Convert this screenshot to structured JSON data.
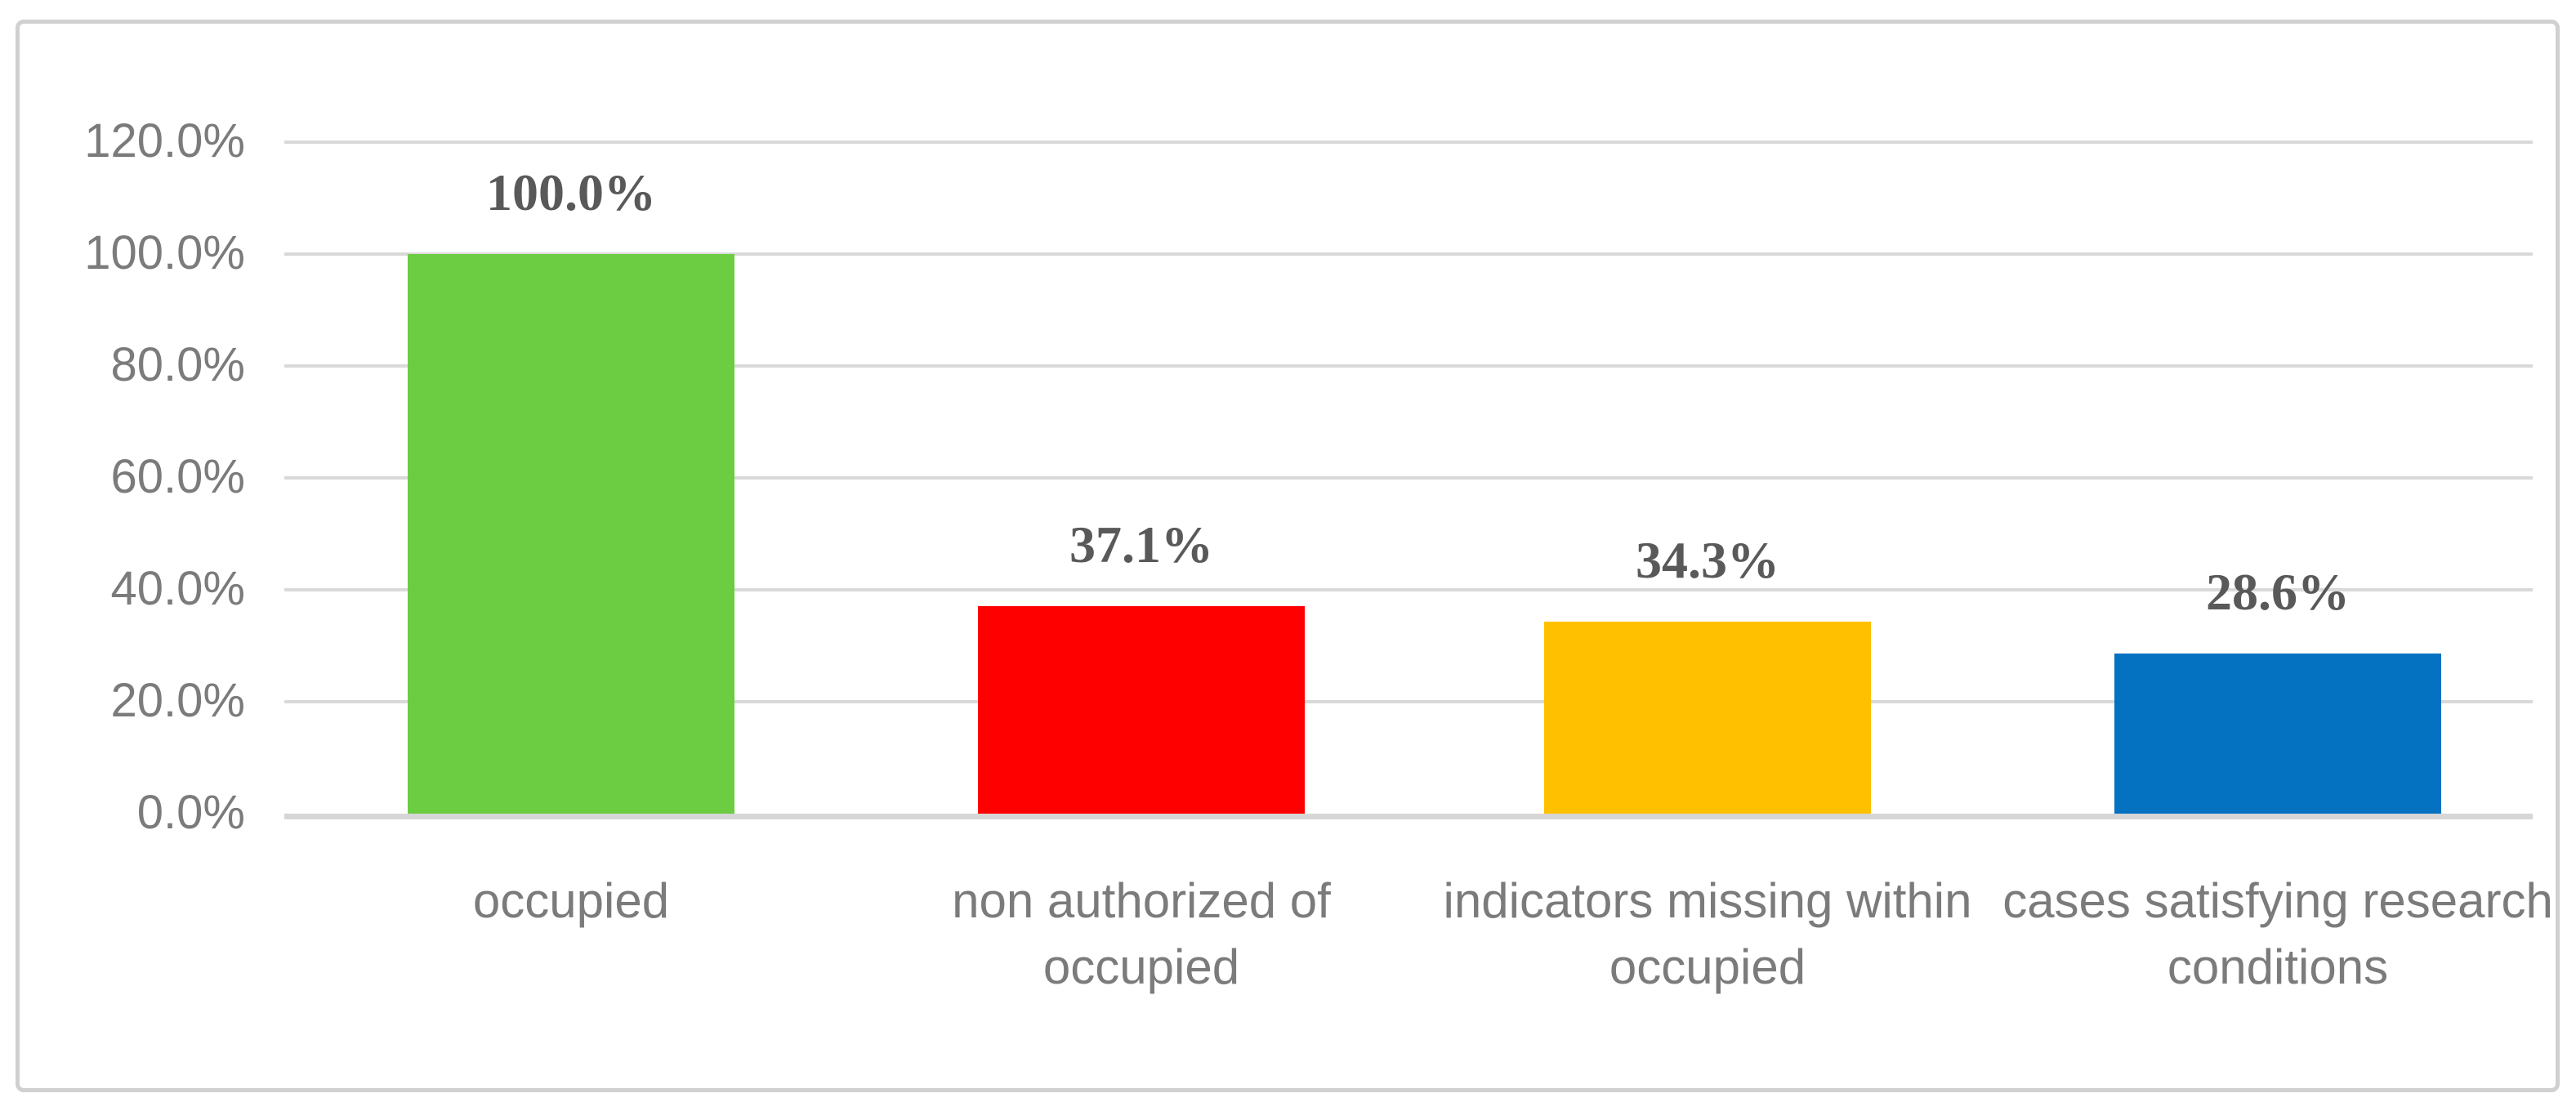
{
  "chart_data": {
    "type": "bar",
    "title": "",
    "xlabel": "",
    "ylabel": "",
    "categories": [
      "occupied",
      "non authorized of occupied",
      "indicators missing within occupied",
      "cases satisfying research conditions"
    ],
    "values": [
      100.0,
      37.1,
      34.3,
      28.6
    ],
    "value_labels": [
      "100.0%",
      "37.1%",
      "34.3%",
      "28.6%"
    ],
    "bar_colors": [
      "#6CCC42",
      "#FF0000",
      "#FFC000",
      "#0471C1"
    ],
    "ylim": [
      0,
      120
    ],
    "ytick_step": 20,
    "ytick_labels_desc": [
      "120.0%",
      "100.0%",
      "80.0%",
      "60.0%",
      "40.0%",
      "20.0%",
      "0.0%"
    ],
    "grid": "horizontal",
    "legend": "none",
    "colors": {
      "gridline": "#D9D9D9",
      "axis_line": "#D6D6D6",
      "axis_text": "#7B7B7B",
      "data_label_text": "#595959",
      "frame_border": "#D0D0D0",
      "background": "#FFFFFF"
    }
  }
}
